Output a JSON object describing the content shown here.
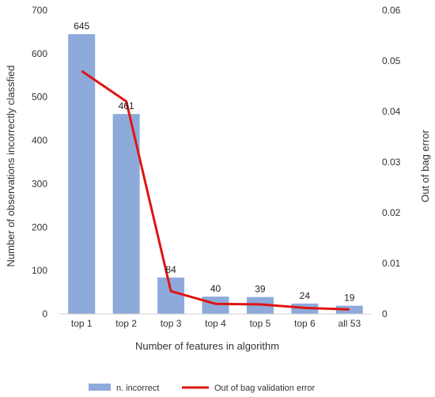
{
  "chart_data": {
    "type": "bar",
    "title": "",
    "categories": [
      "top 1",
      "top 2",
      "top 3",
      "top 4",
      "top 5",
      "top 6",
      "all 53"
    ],
    "xlabel": "Number of features in algorithm",
    "ylabel": "Number of observations incorrectly classfied",
    "y2label": "Out of bag error",
    "ylim": [
      0,
      700
    ],
    "y2lim": [
      0,
      0.06
    ],
    "yticks": [
      "0",
      "100",
      "200",
      "300",
      "400",
      "500",
      "600",
      "700"
    ],
    "y2ticks": [
      "0",
      "0.01",
      "0.02",
      "0.03",
      "0.04",
      "0.05",
      "0.06"
    ],
    "grid": false,
    "legend_position": "bottom",
    "series": [
      {
        "name": "n. incorrect",
        "type": "bar",
        "axis": "left",
        "color": "#8eaadb",
        "values": [
          645,
          461,
          84,
          40,
          39,
          24,
          19
        ],
        "data_labels": [
          "645",
          "461",
          "84",
          "40",
          "39",
          "24",
          "19"
        ]
      },
      {
        "name": "Out of bag validation error",
        "type": "line",
        "axis": "right",
        "color": "#e01414",
        "values": [
          0.048,
          0.042,
          0.0045,
          0.002,
          0.0019,
          0.0012,
          0.0009
        ]
      }
    ]
  }
}
